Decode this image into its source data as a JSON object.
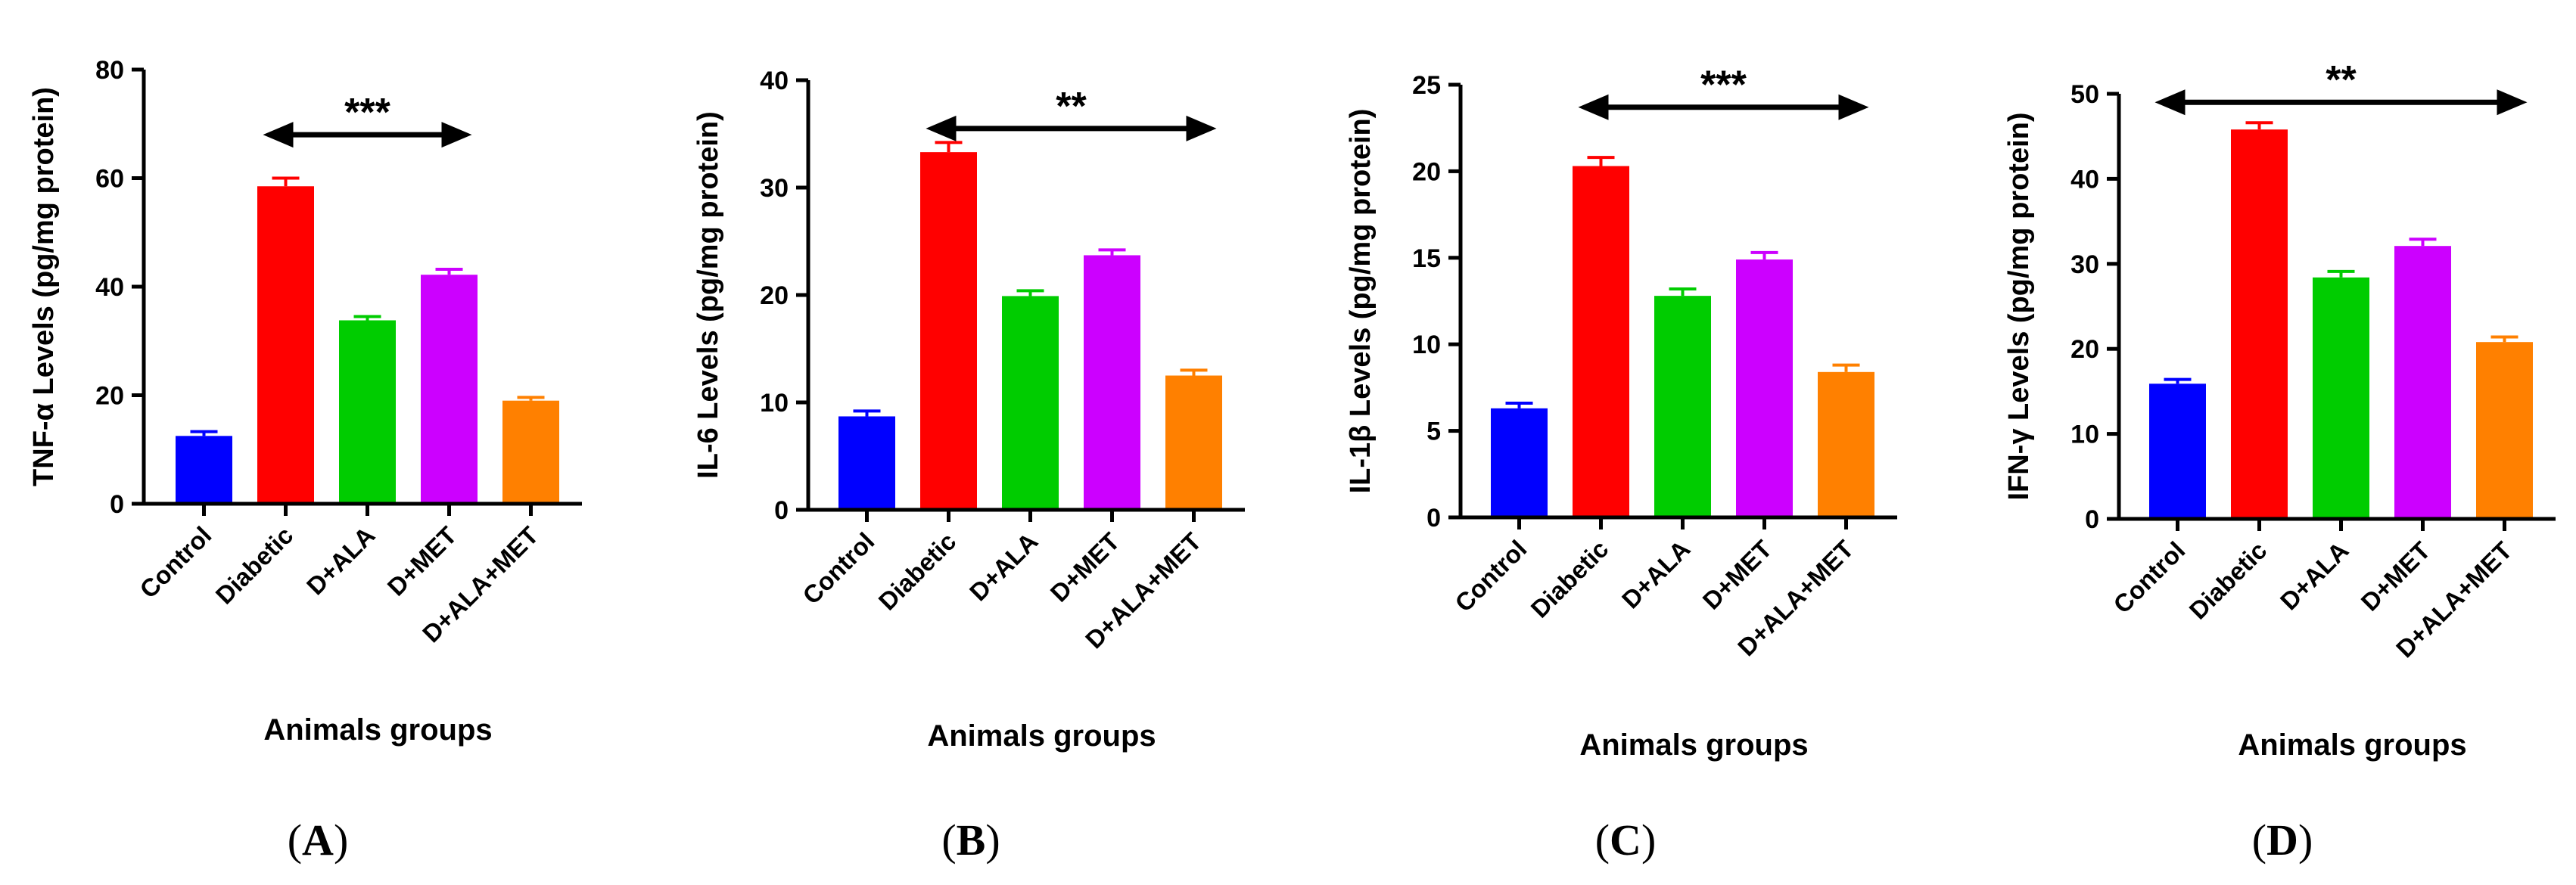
{
  "chart_data": [
    {
      "type": "bar",
      "panel_label": "(A)",
      "panel_letter": "A",
      "ylabel": "TNF-α Levels (pg/mg protein)",
      "xlabel": "Animals groups",
      "categories": [
        "Control",
        "Diabetic",
        "D+ALA",
        "D+MET",
        "D+ALA+MET"
      ],
      "values": [
        12.5,
        58.5,
        33.8,
        42.2,
        19.0
      ],
      "errors": [
        0.8,
        1.5,
        0.7,
        1.0,
        0.6
      ],
      "colors": [
        "#0000ff",
        "#ff0000",
        "#00cc00",
        "#cc00ff",
        "#ff8000"
      ],
      "ylim": [
        0,
        80
      ],
      "yticks": [
        0,
        20,
        40,
        60,
        80
      ],
      "significance": {
        "label": "***",
        "from": "Diabetic",
        "to": "D+MET",
        "y": 68
      }
    },
    {
      "type": "bar",
      "panel_label": "(B)",
      "panel_letter": "B",
      "ylabel": "IL-6 Levels (pg/mg protein)",
      "xlabel": "Animals groups",
      "categories": [
        "Control",
        "Diabetic",
        "D+ALA",
        "D+MET",
        "D+ALA+MET"
      ],
      "values": [
        8.7,
        33.3,
        19.9,
        23.7,
        12.5
      ],
      "errors": [
        0.5,
        0.9,
        0.5,
        0.5,
        0.5
      ],
      "colors": [
        "#0000ff",
        "#ff0000",
        "#00cc00",
        "#cc00ff",
        "#ff8000"
      ],
      "ylim": [
        0,
        40
      ],
      "yticks": [
        0,
        10,
        20,
        30,
        40
      ],
      "significance": {
        "label": "**",
        "from": "Diabetic",
        "to": "D+ALA+MET",
        "y": 35.5
      }
    },
    {
      "type": "bar",
      "panel_label": "(C)",
      "panel_letter": "C",
      "ylabel": "IL-1β Levels (pg/mg protein)",
      "xlabel": "Animals groups",
      "categories": [
        "Control",
        "Diabetic",
        "D+ALA",
        "D+MET",
        "D+ALA+MET"
      ],
      "values": [
        6.3,
        20.3,
        12.8,
        14.9,
        8.4
      ],
      "errors": [
        0.3,
        0.5,
        0.4,
        0.4,
        0.4
      ],
      "colors": [
        "#0000ff",
        "#ff0000",
        "#00cc00",
        "#cc00ff",
        "#ff8000"
      ],
      "ylim": [
        0,
        25
      ],
      "yticks": [
        0,
        5,
        10,
        15,
        20,
        25
      ],
      "significance": {
        "label": "***",
        "from": "Diabetic",
        "to": "D+ALA+MET",
        "y": 23.7
      }
    },
    {
      "type": "bar",
      "panel_label": "(D)",
      "panel_letter": "D",
      "ylabel": "IFN-γ Levels (pg/mg protein)",
      "xlabel": "Animals groups",
      "categories": [
        "Control",
        "Diabetic",
        "D+ALA",
        "D+MET",
        "D+ALA+MET"
      ],
      "values": [
        15.9,
        45.8,
        28.4,
        32.1,
        20.8
      ],
      "errors": [
        0.5,
        0.8,
        0.7,
        0.8,
        0.6
      ],
      "colors": [
        "#0000ff",
        "#ff0000",
        "#00cc00",
        "#cc00ff",
        "#ff8000"
      ],
      "ylim": [
        0,
        50
      ],
      "yticks": [
        0,
        10,
        20,
        30,
        40,
        50
      ],
      "significance": {
        "label": "**",
        "from": "Control",
        "to": "D+ALA+MET",
        "y": 49
      }
    }
  ]
}
